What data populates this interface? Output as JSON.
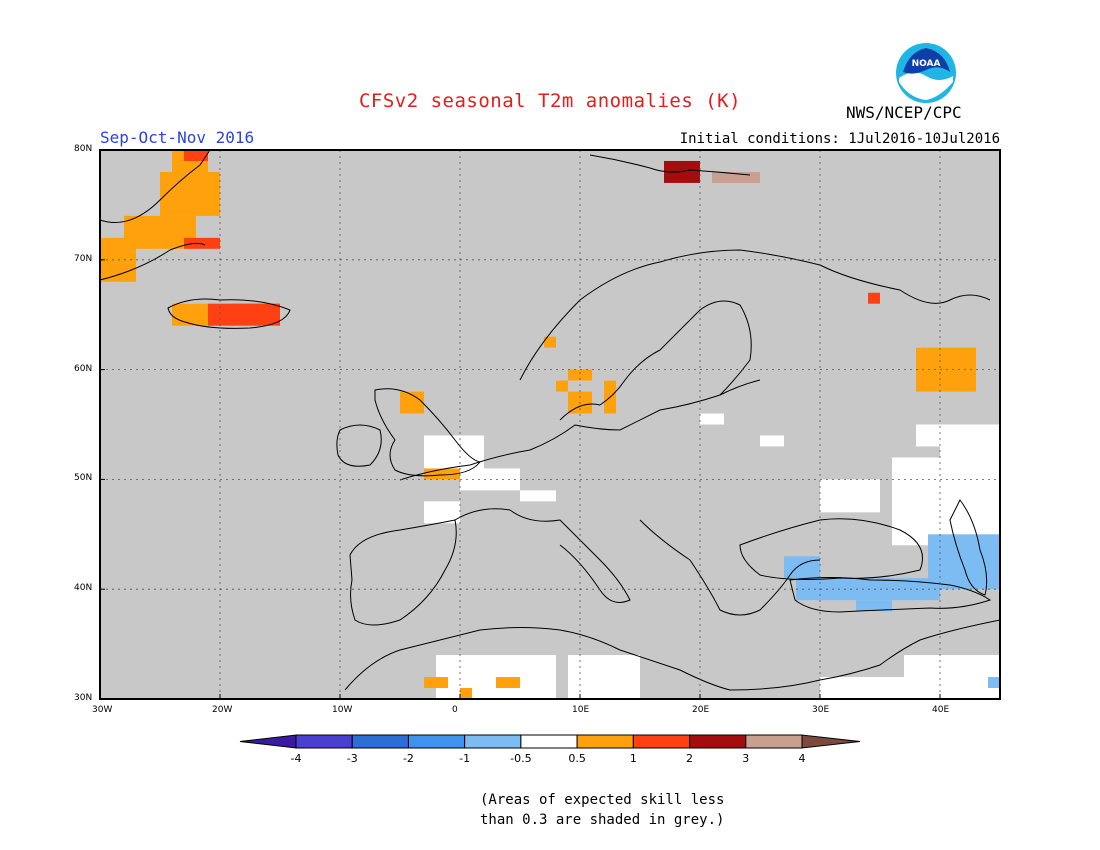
{
  "title": "CFSv2 seasonal T2m anomalies (K)",
  "season": "Sep-Oct-Nov 2016",
  "initial_conditions": "Initial conditions: 1Jul2016-10Jul2016",
  "agency": "NWS/NCEP/CPC",
  "logo_text": "NOAA",
  "lat_labels": [
    "80N",
    "70N",
    "60N",
    "50N",
    "40N",
    "30N"
  ],
  "lon_labels": [
    "30W",
    "20W",
    "10W",
    "0",
    "10E",
    "20E",
    "30E",
    "40E"
  ],
  "colorbar": {
    "labels": [
      "-4",
      "-3",
      "-2",
      "-1",
      "-0.5",
      "0.5",
      "1",
      "2",
      "3",
      "4"
    ],
    "colors": [
      "#3a1aa0",
      "#4b3fd0",
      "#2a6ed6",
      "#3d93ee",
      "#7cbcf2",
      "#ffffff",
      "#ffa10c",
      "#ff4013",
      "#a30d0d",
      "#c9a08f",
      "#7b4a3d"
    ]
  },
  "note_line1": "(Areas of expected skill less",
  "note_line2": "than 0.3 are shaded in grey.)",
  "colors": {
    "title": "#e41c1c",
    "season": "#2a44e0",
    "grey_mask": "#c8c8c8",
    "coast": "#000000"
  }
}
